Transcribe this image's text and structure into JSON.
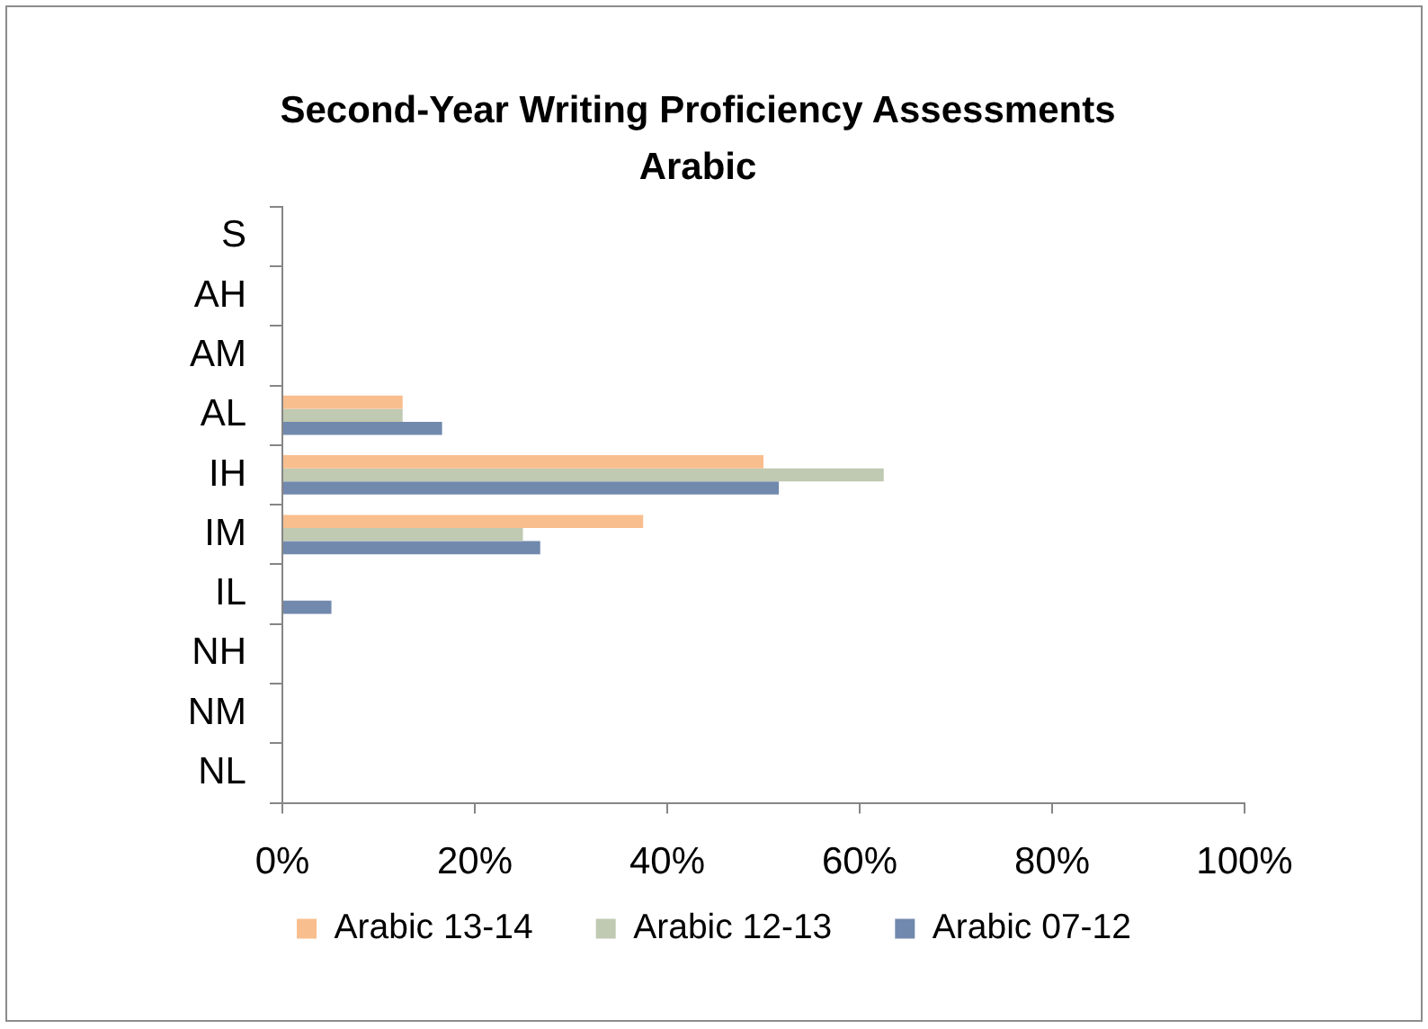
{
  "chart_data": {
    "type": "bar",
    "orientation": "horizontal",
    "title": "Second-Year Writing Proficiency Assessments\nArabic",
    "categories": [
      "S",
      "AH",
      "AM",
      "AL",
      "IH",
      "IM",
      "IL",
      "NH",
      "NM",
      "NL"
    ],
    "series": [
      {
        "name": "Arabic 13-14",
        "color": "#f9be8e",
        "values": [
          0,
          0,
          0,
          12.5,
          50,
          37.5,
          0,
          0,
          0,
          0
        ]
      },
      {
        "name": "Arabic 12-13",
        "color": "#c0c9b1",
        "values": [
          0,
          0,
          0,
          12.5,
          62.5,
          25,
          0,
          0,
          0,
          0
        ]
      },
      {
        "name": "Arabic 07-12",
        "color": "#7289ae",
        "values": [
          0,
          0,
          0,
          16.6,
          51.6,
          26.8,
          5.1,
          0,
          0,
          0
        ]
      }
    ],
    "xlim": [
      0,
      100
    ],
    "xticks": [
      {
        "value": 0,
        "label": "0%"
      },
      {
        "value": 20,
        "label": "20%"
      },
      {
        "value": 40,
        "label": "40%"
      },
      {
        "value": 60,
        "label": "60%"
      },
      {
        "value": 80,
        "label": "80%"
      },
      {
        "value": 100,
        "label": "100%"
      }
    ],
    "legend": "bottom"
  }
}
